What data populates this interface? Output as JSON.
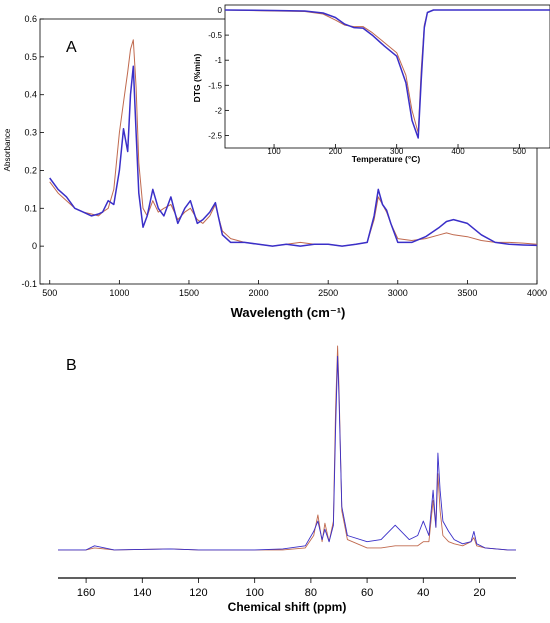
{
  "figure": {
    "panel_a_label": "A",
    "panel_b_label": "B"
  },
  "chart_data": [
    {
      "id": "ftir",
      "type": "line",
      "xlabel": "Wavelength (cm⁻¹)",
      "ylabel": "Absorbance",
      "xlim": [
        430,
        4000
      ],
      "ylim": [
        -0.1,
        0.6
      ],
      "xticks": [
        500,
        1000,
        1500,
        2000,
        2500,
        3000,
        3500,
        4000
      ],
      "yticks": [
        -0.1,
        0,
        0.1,
        0.2,
        0.3,
        0.4,
        0.5,
        0.6
      ],
      "grid": false,
      "series": [
        {
          "color": "#c06a4f",
          "x": [
            500,
            560,
            620,
            680,
            740,
            800,
            850,
            880,
            920,
            960,
            1000,
            1030,
            1060,
            1080,
            1100,
            1120,
            1140,
            1170,
            1200,
            1240,
            1280,
            1320,
            1370,
            1420,
            1470,
            1510,
            1560,
            1600,
            1650,
            1690,
            1710,
            1740,
            1800,
            1900,
            2000,
            2100,
            2200,
            2300,
            2400,
            2500,
            2600,
            2700,
            2780,
            2830,
            2860,
            2890,
            2920,
            2950,
            3000,
            3100,
            3200,
            3300,
            3350,
            3400,
            3500,
            3600,
            3700,
            3800,
            3900,
            4000
          ],
          "y": [
            0.17,
            0.14,
            0.12,
            0.1,
            0.09,
            0.085,
            0.08,
            0.09,
            0.1,
            0.15,
            0.3,
            0.38,
            0.46,
            0.52,
            0.545,
            0.42,
            0.22,
            0.1,
            0.08,
            0.12,
            0.09,
            0.1,
            0.11,
            0.07,
            0.09,
            0.1,
            0.07,
            0.06,
            0.08,
            0.11,
            0.08,
            0.04,
            0.02,
            0.01,
            0.005,
            0.0,
            0.005,
            0.01,
            0.005,
            0.005,
            0.0,
            0.005,
            0.01,
            0.07,
            0.13,
            0.11,
            0.09,
            0.06,
            0.02,
            0.015,
            0.02,
            0.03,
            0.035,
            0.03,
            0.025,
            0.015,
            0.01,
            0.01,
            0.008,
            0.005
          ]
        },
        {
          "color": "#3a2fc8",
          "x": [
            500,
            560,
            620,
            680,
            740,
            800,
            850,
            880,
            920,
            960,
            1000,
            1030,
            1060,
            1080,
            1100,
            1120,
            1140,
            1170,
            1200,
            1240,
            1280,
            1320,
            1370,
            1420,
            1470,
            1510,
            1560,
            1600,
            1650,
            1690,
            1710,
            1740,
            1800,
            1900,
            2000,
            2100,
            2200,
            2300,
            2400,
            2500,
            2600,
            2700,
            2780,
            2830,
            2860,
            2890,
            2920,
            2950,
            3000,
            3100,
            3200,
            3300,
            3350,
            3400,
            3500,
            3600,
            3700,
            3800,
            3900,
            4000
          ],
          "y": [
            0.18,
            0.15,
            0.13,
            0.1,
            0.09,
            0.08,
            0.085,
            0.09,
            0.12,
            0.11,
            0.2,
            0.31,
            0.25,
            0.4,
            0.475,
            0.3,
            0.14,
            0.05,
            0.08,
            0.15,
            0.1,
            0.08,
            0.13,
            0.06,
            0.1,
            0.12,
            0.06,
            0.07,
            0.09,
            0.115,
            0.08,
            0.03,
            0.01,
            0.01,
            0.005,
            0.0,
            0.005,
            0.0,
            0.005,
            0.005,
            0.0,
            0.005,
            0.01,
            0.08,
            0.15,
            0.11,
            0.095,
            0.06,
            0.01,
            0.01,
            0.025,
            0.05,
            0.065,
            0.07,
            0.06,
            0.03,
            0.01,
            0.005,
            0.003,
            0.002
          ]
        }
      ]
    },
    {
      "id": "dtg",
      "type": "line",
      "xlabel": "Temperature (°C)",
      "ylabel": "DTG (%min)",
      "xlim": [
        20,
        550
      ],
      "ylim": [
        -2.75,
        0.1
      ],
      "xticks": [
        100,
        200,
        300,
        400,
        500
      ],
      "yticks": [
        -2.5,
        -2,
        -1.5,
        -1,
        -0.5,
        0
      ],
      "grid": false,
      "series": [
        {
          "color": "#c06a4f",
          "x": [
            20,
            100,
            150,
            180,
            200,
            215,
            230,
            245,
            260,
            280,
            300,
            315,
            325,
            335,
            340,
            345,
            350,
            360,
            400,
            500,
            550
          ],
          "y": [
            0,
            -0.02,
            -0.03,
            -0.08,
            -0.2,
            -0.3,
            -0.33,
            -0.33,
            -0.45,
            -0.65,
            -0.85,
            -1.3,
            -2.0,
            -2.45,
            -1.2,
            -0.3,
            -0.05,
            0,
            0,
            0,
            0
          ]
        },
        {
          "color": "#3a2fc8",
          "x": [
            20,
            100,
            150,
            180,
            200,
            215,
            230,
            245,
            260,
            280,
            300,
            315,
            325,
            335,
            340,
            345,
            350,
            360,
            400,
            500,
            550
          ],
          "y": [
            0,
            -0.01,
            -0.02,
            -0.06,
            -0.15,
            -0.28,
            -0.35,
            -0.36,
            -0.5,
            -0.72,
            -0.92,
            -1.45,
            -2.2,
            -2.55,
            -1.4,
            -0.35,
            -0.05,
            0,
            0,
            0,
            0
          ]
        }
      ]
    },
    {
      "id": "nmr",
      "type": "line",
      "xlabel": "Chemical shift (ppm)",
      "xlim": [
        170,
        7
      ],
      "xticks": [
        160,
        140,
        120,
        100,
        80,
        60,
        40,
        20
      ],
      "grid": false,
      "series": [
        {
          "color": "#c06a4f",
          "x": [
            170,
            160,
            157,
            150,
            130,
            120,
            110,
            100,
            90,
            82,
            79,
            77.5,
            76,
            75,
            73.5,
            72,
            71.2,
            70.5,
            70,
            69,
            67,
            60,
            55,
            50,
            45,
            42,
            40,
            38,
            36.5,
            35.5,
            34.8,
            34,
            33,
            31,
            29,
            26,
            23,
            22,
            21,
            18,
            10,
            7
          ],
          "y": [
            0.01,
            0.01,
            0.02,
            0.01,
            0.015,
            0.01,
            0.01,
            0.01,
            0.01,
            0.02,
            0.08,
            0.18,
            0.05,
            0.14,
            0.05,
            0.15,
            0.7,
            1.0,
            0.8,
            0.2,
            0.06,
            0.02,
            0.02,
            0.03,
            0.03,
            0.03,
            0.05,
            0.05,
            0.25,
            0.12,
            0.38,
            0.2,
            0.08,
            0.05,
            0.04,
            0.03,
            0.05,
            0.07,
            0.03,
            0.02,
            0.01,
            0.01
          ]
        },
        {
          "color": "#3a2fc8",
          "x": [
            170,
            160,
            157,
            150,
            130,
            120,
            110,
            100,
            90,
            82,
            79,
            77.5,
            76,
            75,
            73.5,
            72,
            71.2,
            70.5,
            70,
            69,
            67,
            60,
            55,
            50,
            45,
            42,
            40,
            38,
            36.5,
            35.5,
            34.8,
            34,
            33,
            31,
            29,
            26,
            23,
            22,
            21,
            18,
            10,
            7
          ],
          "y": [
            0.01,
            0.01,
            0.03,
            0.01,
            0.015,
            0.01,
            0.01,
            0.01,
            0.015,
            0.03,
            0.1,
            0.15,
            0.06,
            0.11,
            0.05,
            0.13,
            0.6,
            0.95,
            0.75,
            0.22,
            0.08,
            0.05,
            0.06,
            0.13,
            0.06,
            0.08,
            0.15,
            0.08,
            0.3,
            0.12,
            0.48,
            0.3,
            0.15,
            0.1,
            0.06,
            0.04,
            0.05,
            0.1,
            0.04,
            0.02,
            0.01,
            0.01
          ]
        }
      ]
    }
  ]
}
